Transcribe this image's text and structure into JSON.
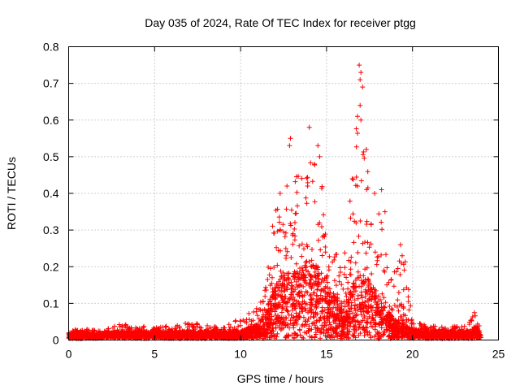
{
  "chart_data": {
    "type": "scatter",
    "title": "Day 035 of 2024, Rate Of TEC Index for receiver ptgg",
    "xlabel": "GPS time / hours",
    "ylabel": "ROTI / TECUs",
    "xlim": [
      0,
      25
    ],
    "ylim": [
      0,
      0.8
    ],
    "xticks": [
      0,
      5,
      10,
      15,
      20,
      25
    ],
    "yticks": [
      0,
      0.1,
      0.2,
      0.3,
      0.4,
      0.5,
      0.6,
      0.7,
      0.8
    ],
    "grid": true,
    "marker": "+",
    "color": "#ff0000",
    "series": [
      {
        "name": "ROTI",
        "description": "dense scatter of 30-second ROTI values from all tracked satellites",
        "envelope": [
          {
            "x": 0.0,
            "typical": 0.015,
            "max": 0.03
          },
          {
            "x": 1.0,
            "typical": 0.015,
            "max": 0.03
          },
          {
            "x": 2.0,
            "typical": 0.015,
            "max": 0.025
          },
          {
            "x": 3.0,
            "typical": 0.02,
            "max": 0.045
          },
          {
            "x": 4.0,
            "typical": 0.02,
            "max": 0.04
          },
          {
            "x": 5.0,
            "typical": 0.02,
            "max": 0.035
          },
          {
            "x": 6.0,
            "typical": 0.02,
            "max": 0.04
          },
          {
            "x": 7.0,
            "typical": 0.02,
            "max": 0.05
          },
          {
            "x": 8.0,
            "typical": 0.02,
            "max": 0.04
          },
          {
            "x": 9.0,
            "typical": 0.02,
            "max": 0.035
          },
          {
            "x": 10.0,
            "typical": 0.02,
            "max": 0.06
          },
          {
            "x": 11.0,
            "typical": 0.04,
            "max": 0.09
          },
          {
            "x": 11.5,
            "typical": 0.08,
            "max": 0.18
          },
          {
            "x": 12.0,
            "typical": 0.15,
            "max": 0.4
          },
          {
            "x": 12.5,
            "typical": 0.18,
            "max": 0.35
          },
          {
            "x": 13.0,
            "typical": 0.18,
            "max": 0.55
          },
          {
            "x": 13.5,
            "typical": 0.2,
            "max": 0.45
          },
          {
            "x": 14.0,
            "typical": 0.22,
            "max": 0.58
          },
          {
            "x": 14.5,
            "typical": 0.2,
            "max": 0.53
          },
          {
            "x": 15.0,
            "typical": 0.15,
            "max": 0.33
          },
          {
            "x": 15.5,
            "typical": 0.12,
            "max": 0.25
          },
          {
            "x": 16.0,
            "typical": 0.08,
            "max": 0.22
          },
          {
            "x": 16.5,
            "typical": 0.15,
            "max": 0.44
          },
          {
            "x": 17.0,
            "typical": 0.18,
            "max": 0.75
          },
          {
            "x": 17.5,
            "typical": 0.16,
            "max": 0.4
          },
          {
            "x": 18.0,
            "typical": 0.12,
            "max": 0.41
          },
          {
            "x": 18.5,
            "typical": 0.08,
            "max": 0.25
          },
          {
            "x": 19.0,
            "typical": 0.05,
            "max": 0.18
          },
          {
            "x": 19.5,
            "typical": 0.04,
            "max": 0.26
          },
          {
            "x": 20.0,
            "typical": 0.025,
            "max": 0.05
          },
          {
            "x": 21.0,
            "typical": 0.02,
            "max": 0.04
          },
          {
            "x": 22.0,
            "typical": 0.02,
            "max": 0.035
          },
          {
            "x": 23.0,
            "typical": 0.02,
            "max": 0.04
          },
          {
            "x": 23.7,
            "typical": 0.03,
            "max": 0.075
          },
          {
            "x": 24.0,
            "typical": 0.02,
            "max": 0.05
          }
        ],
        "notable_points": [
          {
            "x": 16.9,
            "y": 0.75
          },
          {
            "x": 17.0,
            "y": 0.73
          },
          {
            "x": 16.95,
            "y": 0.71
          },
          {
            "x": 17.1,
            "y": 0.69
          },
          {
            "x": 16.95,
            "y": 0.64
          },
          {
            "x": 16.8,
            "y": 0.61
          },
          {
            "x": 17.0,
            "y": 0.6
          },
          {
            "x": 14.0,
            "y": 0.58
          },
          {
            "x": 12.9,
            "y": 0.55
          },
          {
            "x": 12.85,
            "y": 0.53
          },
          {
            "x": 14.5,
            "y": 0.53
          },
          {
            "x": 14.6,
            "y": 0.5
          },
          {
            "x": 14.3,
            "y": 0.48
          },
          {
            "x": 16.5,
            "y": 0.44
          },
          {
            "x": 16.8,
            "y": 0.42
          },
          {
            "x": 12.3,
            "y": 0.4
          },
          {
            "x": 18.2,
            "y": 0.41
          },
          {
            "x": 17.8,
            "y": 0.4
          },
          {
            "x": 12.7,
            "y": 0.42
          },
          {
            "x": 13.9,
            "y": 0.42
          },
          {
            "x": 18.4,
            "y": 0.35
          },
          {
            "x": 19.3,
            "y": 0.26
          },
          {
            "x": 19.4,
            "y": 0.23
          },
          {
            "x": 19.35,
            "y": 0.21
          },
          {
            "x": 23.6,
            "y": 0.075
          }
        ]
      }
    ]
  }
}
